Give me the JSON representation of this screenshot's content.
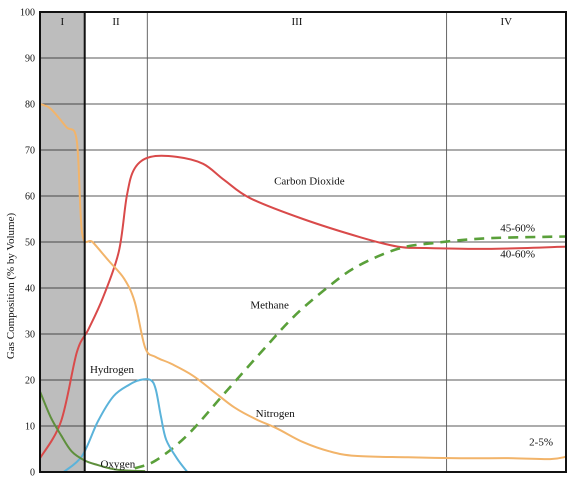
{
  "chart_data": {
    "type": "line",
    "title": "",
    "xlabel": "",
    "ylabel": "Gas Composition (% by Volume)",
    "ylim": [
      0,
      100
    ],
    "yticks": [
      0,
      10,
      20,
      30,
      40,
      50,
      60,
      70,
      80,
      90,
      100
    ],
    "xlim": [
      0,
      100
    ],
    "grid": "vertical phase dividers and horizontal gridlines",
    "phases": [
      {
        "label": "I",
        "start": 0,
        "end": 8.5,
        "shaded": true
      },
      {
        "label": "II",
        "start": 8.5,
        "end": 20.4,
        "shaded": false
      },
      {
        "label": "III",
        "start": 20.4,
        "end": 77.3,
        "shaded": false
      },
      {
        "label": "IV",
        "start": 77.3,
        "end": 100,
        "shaded": false
      }
    ],
    "series": [
      {
        "name": "Carbon Dioxide",
        "color": "#d94a4a",
        "dashed": false,
        "points": [
          [
            0,
            3
          ],
          [
            4,
            11
          ],
          [
            7,
            26
          ],
          [
            9.2,
            31
          ],
          [
            12,
            38
          ],
          [
            15,
            48
          ],
          [
            16.5,
            60
          ],
          [
            18,
            66
          ],
          [
            21,
            68.5
          ],
          [
            26,
            68.5
          ],
          [
            31,
            67
          ],
          [
            35,
            63.5
          ],
          [
            40,
            59.5
          ],
          [
            50,
            55
          ],
          [
            61,
            51
          ],
          [
            68,
            49
          ],
          [
            73,
            48.7
          ],
          [
            85,
            48.5
          ],
          [
            100,
            49
          ]
        ]
      },
      {
        "name": "Methane",
        "color": "#5aa03a",
        "dashed": true,
        "points": [
          [
            18,
            0.8
          ],
          [
            22,
            2.5
          ],
          [
            28,
            8
          ],
          [
            35,
            17
          ],
          [
            42,
            26
          ],
          [
            48,
            33.5
          ],
          [
            54,
            39.5
          ],
          [
            60,
            44.5
          ],
          [
            68,
            48.5
          ],
          [
            75,
            49.8
          ],
          [
            85,
            50.8
          ],
          [
            100,
            51.2
          ]
        ]
      },
      {
        "name": "Nitrogen",
        "color": "#f2b46a",
        "dashed": false,
        "points": [
          [
            0,
            80
          ],
          [
            2,
            79
          ],
          [
            5,
            75
          ],
          [
            7,
            72
          ],
          [
            8,
            52
          ],
          [
            10,
            50
          ],
          [
            13,
            46
          ],
          [
            16,
            42
          ],
          [
            18,
            37
          ],
          [
            20,
            27
          ],
          [
            22,
            25
          ],
          [
            25,
            23.5
          ],
          [
            29,
            21
          ],
          [
            33,
            17.5
          ],
          [
            37,
            14
          ],
          [
            41,
            11.5
          ],
          [
            45,
            9.5
          ],
          [
            50,
            6.5
          ],
          [
            55,
            4.5
          ],
          [
            60,
            3.5
          ],
          [
            70,
            3.2
          ],
          [
            80,
            3
          ],
          [
            90,
            3
          ],
          [
            97,
            2.8
          ],
          [
            100,
            3.3
          ]
        ]
      },
      {
        "name": "Hydrogen",
        "color": "#5bb3da",
        "dashed": false,
        "points": [
          [
            4.5,
            0
          ],
          [
            8,
            3.5
          ],
          [
            11,
            11
          ],
          [
            14,
            16.5
          ],
          [
            17,
            19
          ],
          [
            19,
            20
          ],
          [
            21,
            20
          ],
          [
            22,
            18
          ],
          [
            23,
            12
          ],
          [
            24,
            7
          ],
          [
            26,
            3
          ],
          [
            28,
            0
          ]
        ]
      },
      {
        "name": "Oxygen",
        "color": "#5e8f3c",
        "dashed": false,
        "points": [
          [
            0,
            17.5
          ],
          [
            2,
            12
          ],
          [
            4,
            8
          ],
          [
            6,
            4.5
          ],
          [
            8.5,
            2.5
          ],
          [
            11,
            1.5
          ],
          [
            14,
            0.6
          ],
          [
            17,
            0.3
          ],
          [
            20,
            0.2
          ]
        ]
      }
    ],
    "annotations": [
      {
        "text": "Carbon Dioxide",
        "x": 44.5,
        "y": 62.5
      },
      {
        "text": "Methane",
        "x": 40,
        "y": 35.5
      },
      {
        "text": "Nitrogen",
        "x": 41,
        "y": 12
      },
      {
        "text": "Hydrogen",
        "x": 9.5,
        "y": 21.5
      },
      {
        "text": "Oxygen",
        "x": 11.5,
        "y": 1
      },
      {
        "text": "45-60%",
        "x": 87.5,
        "y": 52.3
      },
      {
        "text": "40-60%",
        "x": 87.5,
        "y": 46.6
      },
      {
        "text": "2-5%",
        "x": 93,
        "y": 5.8
      }
    ]
  }
}
